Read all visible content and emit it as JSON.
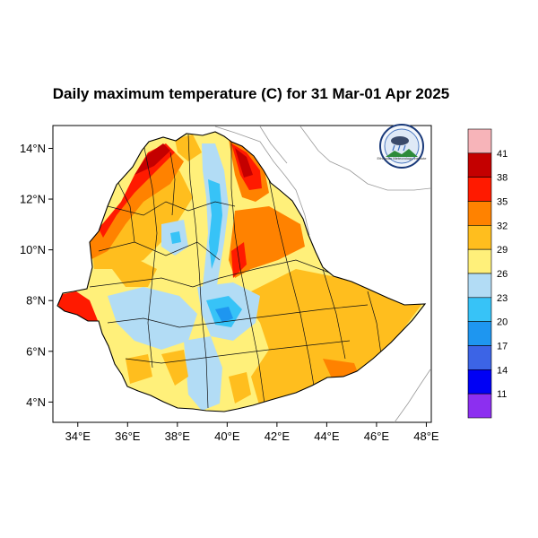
{
  "title": "Daily maximum temperature (C) for 31 Mar-01 Apr 2025",
  "map": {
    "lon_ticks": [
      "34°E",
      "36°E",
      "38°E",
      "40°E",
      "42°E",
      "44°E",
      "46°E",
      "48°E"
    ],
    "lat_ticks": [
      "14°N",
      "12°N",
      "10°N",
      "8°N",
      "6°N",
      "4°N"
    ],
    "lon_range": [
      33,
      48.2
    ],
    "lat_range": [
      3.2,
      14.9
    ]
  },
  "colorbar": {
    "labels": [
      "41",
      "38",
      "35",
      "32",
      "29",
      "26",
      "23",
      "20",
      "17",
      "14",
      "11"
    ],
    "colors": [
      "#f7b4b9",
      "#c40000",
      "#ff1a00",
      "#ff8200",
      "#ffbe1e",
      "#fff07a",
      "#b2dcf5",
      "#37c3f7",
      "#1e96f0",
      "#3c64e6",
      "#0000f5",
      "#8c2ff0"
    ]
  },
  "logo": {
    "icon": "meteorology-institute-logo",
    "caption": "Ethiopian Meteorology Institute"
  }
}
